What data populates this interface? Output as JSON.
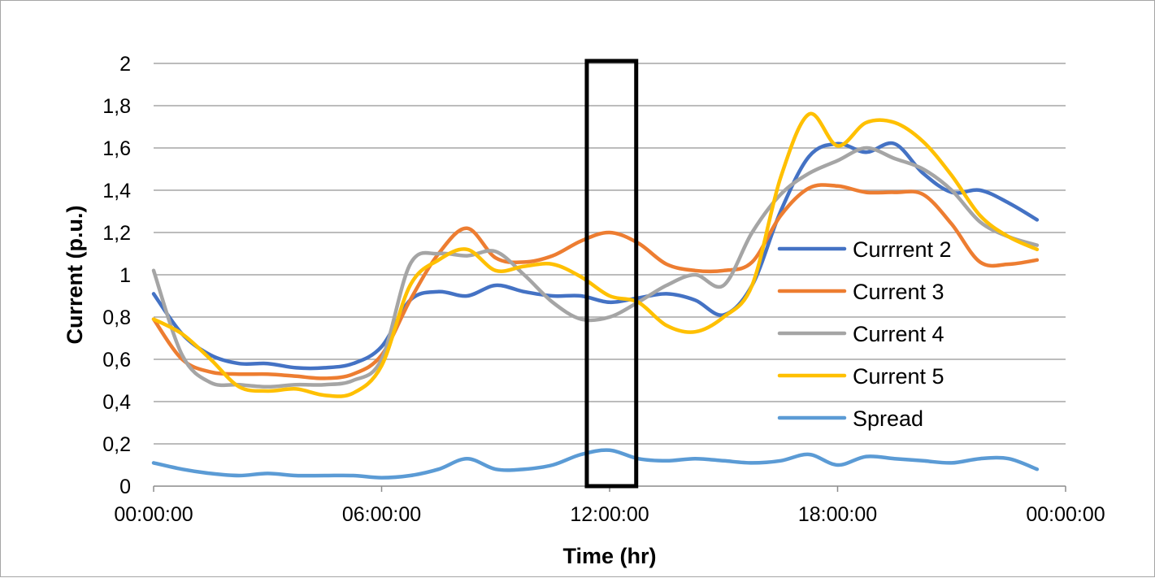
{
  "chart_data": {
    "type": "line",
    "title": "",
    "xlabel": "Time (hr)",
    "ylabel": "Current (p.u.)",
    "ylim": [
      0,
      2
    ],
    "y_ticks": [
      "0",
      "0,2",
      "0,4",
      "0,6",
      "0,8",
      "1",
      "1,2",
      "1,4",
      "1,6",
      "1,8",
      "2"
    ],
    "x_range_hours": [
      0,
      24
    ],
    "x_ticks": [
      {
        "label": "00:00:00",
        "hour": 0
      },
      {
        "label": "06:00:00",
        "hour": 6
      },
      {
        "label": "12:00:00",
        "hour": 12
      },
      {
        "label": "18:00:00",
        "hour": 18
      },
      {
        "label": "00:00:00",
        "hour": 24
      }
    ],
    "grid": true,
    "legend_position": "right",
    "highlight_box": {
      "x_start_hour": 11.4,
      "x_end_hour": 12.7,
      "y_start": 0,
      "y_end": 2
    },
    "x_hours": [
      0,
      0.75,
      1.5,
      2.25,
      3,
      3.75,
      4.5,
      5.25,
      6,
      6.75,
      7.5,
      8.25,
      9,
      9.75,
      10.5,
      11.25,
      12,
      12.75,
      13.5,
      14.25,
      15,
      15.75,
      16.5,
      17.25,
      18,
      18.75,
      19.5,
      20.25,
      21,
      21.75,
      22.5,
      23.25
    ],
    "series": [
      {
        "name": "Currrent 2",
        "color": "#4472c4",
        "values": [
          0.91,
          0.72,
          0.62,
          0.58,
          0.58,
          0.56,
          0.56,
          0.58,
          0.66,
          0.88,
          0.92,
          0.9,
          0.95,
          0.92,
          0.9,
          0.9,
          0.87,
          0.89,
          0.91,
          0.88,
          0.81,
          0.95,
          1.3,
          1.56,
          1.62,
          1.58,
          1.62,
          1.48,
          1.39,
          1.4,
          1.34,
          1.26
        ]
      },
      {
        "name": "Current 3",
        "color": "#ed7d31",
        "values": [
          0.79,
          0.6,
          0.54,
          0.53,
          0.53,
          0.52,
          0.51,
          0.53,
          0.62,
          0.88,
          1.1,
          1.22,
          1.08,
          1.06,
          1.09,
          1.16,
          1.2,
          1.15,
          1.05,
          1.02,
          1.02,
          1.06,
          1.28,
          1.41,
          1.42,
          1.39,
          1.39,
          1.38,
          1.24,
          1.06,
          1.05,
          1.07
        ]
      },
      {
        "name": "Current 4",
        "color": "#a5a5a5",
        "values": [
          1.02,
          0.62,
          0.49,
          0.48,
          0.47,
          0.48,
          0.48,
          0.5,
          0.6,
          1.05,
          1.1,
          1.09,
          1.11,
          1.0,
          0.87,
          0.79,
          0.8,
          0.87,
          0.95,
          1.0,
          0.95,
          1.2,
          1.38,
          1.48,
          1.54,
          1.6,
          1.55,
          1.5,
          1.4,
          1.25,
          1.18,
          1.14
        ]
      },
      {
        "name": "Current 5",
        "color": "#ffc000",
        "values": [
          0.79,
          0.72,
          0.6,
          0.47,
          0.45,
          0.46,
          0.43,
          0.44,
          0.57,
          0.95,
          1.07,
          1.12,
          1.02,
          1.04,
          1.05,
          0.99,
          0.9,
          0.87,
          0.76,
          0.73,
          0.8,
          0.95,
          1.46,
          1.76,
          1.61,
          1.72,
          1.72,
          1.63,
          1.47,
          1.28,
          1.18,
          1.12
        ]
      },
      {
        "name": "Spread",
        "color": "#5b9bd5",
        "values": [
          0.11,
          0.08,
          0.06,
          0.05,
          0.06,
          0.05,
          0.05,
          0.05,
          0.04,
          0.05,
          0.08,
          0.13,
          0.08,
          0.08,
          0.1,
          0.15,
          0.17,
          0.13,
          0.12,
          0.13,
          0.12,
          0.11,
          0.12,
          0.15,
          0.1,
          0.14,
          0.13,
          0.12,
          0.11,
          0.13,
          0.13,
          0.08
        ]
      }
    ]
  }
}
